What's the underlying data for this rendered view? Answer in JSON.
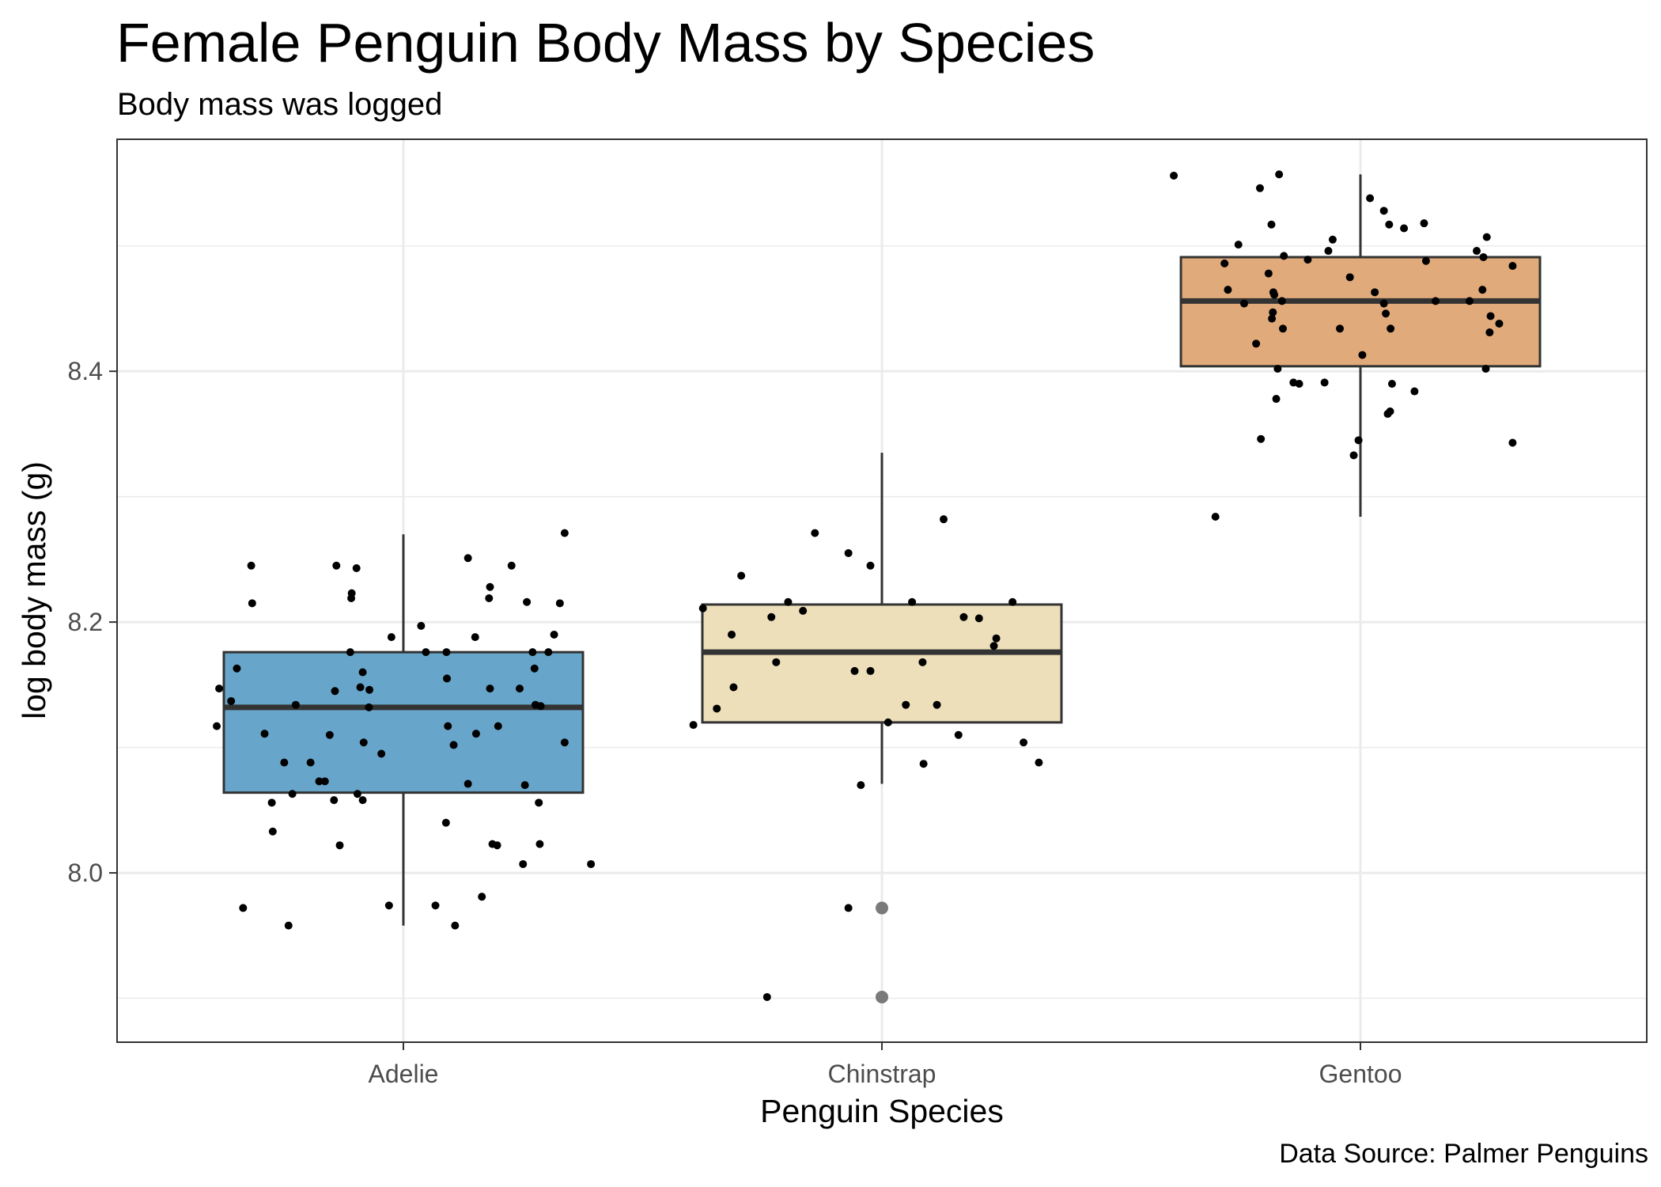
{
  "chart_data": {
    "type": "boxplot",
    "title": "Female Penguin Body Mass by Species",
    "subtitle": "Body mass was logged",
    "caption": "Data Source: Palmer Penguins",
    "xlabel": "Penguin Species",
    "ylabel": "log body mass (g)",
    "categories": [
      "Adelie",
      "Chinstrap",
      "Gentoo"
    ],
    "ylim": [
      7.865,
      8.585
    ],
    "y_ticks": [
      8.0,
      8.2,
      8.4
    ],
    "y_tick_labels": [
      "8.0",
      "8.2",
      "8.4"
    ],
    "grid": true,
    "colors": {
      "Adelie": "#67a6ca",
      "Chinstrap": "#ecdfb9",
      "Gentoo": "#e1aa7a",
      "box_outline": "#333333",
      "points": "#000000",
      "outliers": "#7a7a7a",
      "grid": "#ebebeb",
      "panel_border": "#333333"
    },
    "boxes": [
      {
        "category": "Adelie",
        "min": 7.958,
        "q1": 8.064,
        "median": 8.132,
        "q3": 8.176,
        "max": 8.27,
        "outliers": []
      },
      {
        "category": "Chinstrap",
        "min": 8.071,
        "q1": 8.12,
        "median": 8.176,
        "q3": 8.214,
        "max": 8.335,
        "outliers": [
          7.972,
          7.901
        ]
      },
      {
        "category": "Gentoo",
        "min": 8.284,
        "q1": 8.404,
        "median": 8.456,
        "q3": 8.491,
        "max": 8.557,
        "outliers": []
      }
    ],
    "points": [
      {
        "category": "Adelie",
        "x_jitter": -0.39,
        "y": 8.117
      },
      {
        "category": "Adelie",
        "x_jitter": -0.385,
        "y": 8.147
      },
      {
        "category": "Adelie",
        "x_jitter": -0.36,
        "y": 8.137
      },
      {
        "category": "Adelie",
        "x_jitter": -0.348,
        "y": 8.163
      },
      {
        "category": "Adelie",
        "x_jitter": -0.335,
        "y": 7.972
      },
      {
        "category": "Adelie",
        "x_jitter": -0.318,
        "y": 8.245
      },
      {
        "category": "Adelie",
        "x_jitter": -0.316,
        "y": 8.215
      },
      {
        "category": "Adelie",
        "x_jitter": -0.29,
        "y": 8.111
      },
      {
        "category": "Adelie",
        "x_jitter": -0.275,
        "y": 8.056
      },
      {
        "category": "Adelie",
        "x_jitter": -0.273,
        "y": 8.033
      },
      {
        "category": "Adelie",
        "x_jitter": -0.249,
        "y": 8.088
      },
      {
        "category": "Adelie",
        "x_jitter": -0.24,
        "y": 7.958
      },
      {
        "category": "Adelie",
        "x_jitter": -0.232,
        "y": 8.063
      },
      {
        "category": "Adelie",
        "x_jitter": -0.225,
        "y": 8.134
      },
      {
        "category": "Adelie",
        "x_jitter": -0.194,
        "y": 8.088
      },
      {
        "category": "Adelie",
        "x_jitter": -0.176,
        "y": 8.073
      },
      {
        "category": "Adelie",
        "x_jitter": -0.164,
        "y": 8.073
      },
      {
        "category": "Adelie",
        "x_jitter": -0.154,
        "y": 8.11
      },
      {
        "category": "Adelie",
        "x_jitter": -0.145,
        "y": 8.058
      },
      {
        "category": "Adelie",
        "x_jitter": -0.143,
        "y": 8.145
      },
      {
        "category": "Adelie",
        "x_jitter": -0.14,
        "y": 8.245
      },
      {
        "category": "Adelie",
        "x_jitter": -0.133,
        "y": 8.022
      },
      {
        "category": "Adelie",
        "x_jitter": -0.111,
        "y": 8.176
      },
      {
        "category": "Adelie",
        "x_jitter": -0.109,
        "y": 8.219
      },
      {
        "category": "Adelie",
        "x_jitter": -0.108,
        "y": 8.223
      },
      {
        "category": "Adelie",
        "x_jitter": -0.098,
        "y": 8.243
      },
      {
        "category": "Adelie",
        "x_jitter": -0.096,
        "y": 8.063
      },
      {
        "category": "Adelie",
        "x_jitter": -0.09,
        "y": 8.148
      },
      {
        "category": "Adelie",
        "x_jitter": -0.085,
        "y": 8.058
      },
      {
        "category": "Adelie",
        "x_jitter": -0.085,
        "y": 8.16
      },
      {
        "category": "Adelie",
        "x_jitter": -0.083,
        "y": 8.104
      },
      {
        "category": "Adelie",
        "x_jitter": -0.072,
        "y": 8.132
      },
      {
        "category": "Adelie",
        "x_jitter": -0.071,
        "y": 8.146
      },
      {
        "category": "Adelie",
        "x_jitter": -0.046,
        "y": 8.095
      },
      {
        "category": "Adelie",
        "x_jitter": -0.03,
        "y": 7.974
      },
      {
        "category": "Adelie",
        "x_jitter": -0.025,
        "y": 8.188
      },
      {
        "category": "Adelie",
        "x_jitter": 0.037,
        "y": 8.197
      },
      {
        "category": "Adelie",
        "x_jitter": 0.047,
        "y": 8.176
      },
      {
        "category": "Adelie",
        "x_jitter": 0.067,
        "y": 7.974
      },
      {
        "category": "Adelie",
        "x_jitter": 0.089,
        "y": 8.04
      },
      {
        "category": "Adelie",
        "x_jitter": 0.09,
        "y": 8.176
      },
      {
        "category": "Adelie",
        "x_jitter": 0.091,
        "y": 8.155
      },
      {
        "category": "Adelie",
        "x_jitter": 0.093,
        "y": 8.117
      },
      {
        "category": "Adelie",
        "x_jitter": 0.105,
        "y": 8.102
      },
      {
        "category": "Adelie",
        "x_jitter": 0.108,
        "y": 7.958
      },
      {
        "category": "Adelie",
        "x_jitter": 0.135,
        "y": 8.071
      },
      {
        "category": "Adelie",
        "x_jitter": 0.135,
        "y": 8.251
      },
      {
        "category": "Adelie",
        "x_jitter": 0.15,
        "y": 8.188
      },
      {
        "category": "Adelie",
        "x_jitter": 0.152,
        "y": 8.111
      },
      {
        "category": "Adelie",
        "x_jitter": 0.164,
        "y": 7.981
      },
      {
        "category": "Adelie",
        "x_jitter": 0.179,
        "y": 8.219
      },
      {
        "category": "Adelie",
        "x_jitter": 0.181,
        "y": 8.228
      },
      {
        "category": "Adelie",
        "x_jitter": 0.181,
        "y": 8.147
      },
      {
        "category": "Adelie",
        "x_jitter": 0.186,
        "y": 8.023
      },
      {
        "category": "Adelie",
        "x_jitter": 0.196,
        "y": 8.022
      },
      {
        "category": "Adelie",
        "x_jitter": 0.198,
        "y": 8.117
      },
      {
        "category": "Adelie",
        "x_jitter": 0.226,
        "y": 8.245
      },
      {
        "category": "Adelie",
        "x_jitter": 0.243,
        "y": 8.147
      },
      {
        "category": "Adelie",
        "x_jitter": 0.25,
        "y": 8.007
      },
      {
        "category": "Adelie",
        "x_jitter": 0.254,
        "y": 8.07
      },
      {
        "category": "Adelie",
        "x_jitter": 0.258,
        "y": 8.216
      },
      {
        "category": "Adelie",
        "x_jitter": 0.27,
        "y": 8.176
      },
      {
        "category": "Adelie",
        "x_jitter": 0.274,
        "y": 8.163
      },
      {
        "category": "Adelie",
        "x_jitter": 0.276,
        "y": 8.134
      },
      {
        "category": "Adelie",
        "x_jitter": 0.283,
        "y": 8.056
      },
      {
        "category": "Adelie",
        "x_jitter": 0.285,
        "y": 8.023
      },
      {
        "category": "Adelie",
        "x_jitter": 0.287,
        "y": 8.133
      },
      {
        "category": "Adelie",
        "x_jitter": 0.303,
        "y": 8.176
      },
      {
        "category": "Adelie",
        "x_jitter": 0.315,
        "y": 8.19
      },
      {
        "category": "Adelie",
        "x_jitter": 0.327,
        "y": 8.215
      },
      {
        "category": "Adelie",
        "x_jitter": 0.337,
        "y": 8.104
      },
      {
        "category": "Adelie",
        "x_jitter": 0.337,
        "y": 8.271
      },
      {
        "category": "Adelie",
        "x_jitter": 0.392,
        "y": 8.007
      },
      {
        "category": "Chinstrap",
        "x_jitter": -0.394,
        "y": 8.118
      },
      {
        "category": "Chinstrap",
        "x_jitter": -0.374,
        "y": 8.211
      },
      {
        "category": "Chinstrap",
        "x_jitter": -0.345,
        "y": 8.131
      },
      {
        "category": "Chinstrap",
        "x_jitter": -0.314,
        "y": 8.19
      },
      {
        "category": "Chinstrap",
        "x_jitter": -0.31,
        "y": 8.148
      },
      {
        "category": "Chinstrap",
        "x_jitter": -0.294,
        "y": 8.237
      },
      {
        "category": "Chinstrap",
        "x_jitter": -0.24,
        "y": 7.901
      },
      {
        "category": "Chinstrap",
        "x_jitter": -0.231,
        "y": 8.204
      },
      {
        "category": "Chinstrap",
        "x_jitter": -0.221,
        "y": 8.168
      },
      {
        "category": "Chinstrap",
        "x_jitter": -0.196,
        "y": 8.216
      },
      {
        "category": "Chinstrap",
        "x_jitter": -0.165,
        "y": 8.209
      },
      {
        "category": "Chinstrap",
        "x_jitter": -0.14,
        "y": 8.271
      },
      {
        "category": "Chinstrap",
        "x_jitter": -0.07,
        "y": 7.972
      },
      {
        "category": "Chinstrap",
        "x_jitter": -0.07,
        "y": 8.255
      },
      {
        "category": "Chinstrap",
        "x_jitter": -0.057,
        "y": 8.161
      },
      {
        "category": "Chinstrap",
        "x_jitter": -0.044,
        "y": 8.07
      },
      {
        "category": "Chinstrap",
        "x_jitter": -0.024,
        "y": 8.245
      },
      {
        "category": "Chinstrap",
        "x_jitter": -0.024,
        "y": 8.161
      },
      {
        "category": "Chinstrap",
        "x_jitter": 0.013,
        "y": 8.12
      },
      {
        "category": "Chinstrap",
        "x_jitter": 0.05,
        "y": 8.134
      },
      {
        "category": "Chinstrap",
        "x_jitter": 0.063,
        "y": 8.216
      },
      {
        "category": "Chinstrap",
        "x_jitter": 0.085,
        "y": 8.168
      },
      {
        "category": "Chinstrap",
        "x_jitter": 0.087,
        "y": 8.087
      },
      {
        "category": "Chinstrap",
        "x_jitter": 0.115,
        "y": 8.134
      },
      {
        "category": "Chinstrap",
        "x_jitter": 0.129,
        "y": 8.282
      },
      {
        "category": "Chinstrap",
        "x_jitter": 0.16,
        "y": 8.11
      },
      {
        "category": "Chinstrap",
        "x_jitter": 0.171,
        "y": 8.204
      },
      {
        "category": "Chinstrap",
        "x_jitter": 0.203,
        "y": 8.203
      },
      {
        "category": "Chinstrap",
        "x_jitter": 0.234,
        "y": 8.181
      },
      {
        "category": "Chinstrap",
        "x_jitter": 0.239,
        "y": 8.187
      },
      {
        "category": "Chinstrap",
        "x_jitter": 0.273,
        "y": 8.216
      },
      {
        "category": "Chinstrap",
        "x_jitter": 0.296,
        "y": 8.104
      },
      {
        "category": "Chinstrap",
        "x_jitter": 0.328,
        "y": 8.088
      },
      {
        "category": "Gentoo",
        "x_jitter": -0.39,
        "y": 8.556
      },
      {
        "category": "Gentoo",
        "x_jitter": -0.303,
        "y": 8.284
      },
      {
        "category": "Gentoo",
        "x_jitter": -0.284,
        "y": 8.486
      },
      {
        "category": "Gentoo",
        "x_jitter": -0.277,
        "y": 8.465
      },
      {
        "category": "Gentoo",
        "x_jitter": -0.255,
        "y": 8.501
      },
      {
        "category": "Gentoo",
        "x_jitter": -0.243,
        "y": 8.454
      },
      {
        "category": "Gentoo",
        "x_jitter": -0.218,
        "y": 8.422
      },
      {
        "category": "Gentoo",
        "x_jitter": -0.21,
        "y": 8.546
      },
      {
        "category": "Gentoo",
        "x_jitter": -0.208,
        "y": 8.346
      },
      {
        "category": "Gentoo",
        "x_jitter": -0.192,
        "y": 8.478
      },
      {
        "category": "Gentoo",
        "x_jitter": -0.186,
        "y": 8.517
      },
      {
        "category": "Gentoo",
        "x_jitter": -0.185,
        "y": 8.442
      },
      {
        "category": "Gentoo",
        "x_jitter": -0.183,
        "y": 8.447
      },
      {
        "category": "Gentoo",
        "x_jitter": -0.182,
        "y": 8.463
      },
      {
        "category": "Gentoo",
        "x_jitter": -0.18,
        "y": 8.461
      },
      {
        "category": "Gentoo",
        "x_jitter": -0.176,
        "y": 8.378
      },
      {
        "category": "Gentoo",
        "x_jitter": -0.173,
        "y": 8.402
      },
      {
        "category": "Gentoo",
        "x_jitter": -0.17,
        "y": 8.557
      },
      {
        "category": "Gentoo",
        "x_jitter": -0.164,
        "y": 8.456
      },
      {
        "category": "Gentoo",
        "x_jitter": -0.162,
        "y": 8.434
      },
      {
        "category": "Gentoo",
        "x_jitter": -0.16,
        "y": 8.492
      },
      {
        "category": "Gentoo",
        "x_jitter": -0.14,
        "y": 8.391
      },
      {
        "category": "Gentoo",
        "x_jitter": -0.128,
        "y": 8.39
      },
      {
        "category": "Gentoo",
        "x_jitter": -0.11,
        "y": 8.489
      },
      {
        "category": "Gentoo",
        "x_jitter": -0.075,
        "y": 8.391
      },
      {
        "category": "Gentoo",
        "x_jitter": -0.067,
        "y": 8.496
      },
      {
        "category": "Gentoo",
        "x_jitter": -0.058,
        "y": 8.505
      },
      {
        "category": "Gentoo",
        "x_jitter": -0.043,
        "y": 8.434
      },
      {
        "category": "Gentoo",
        "x_jitter": -0.022,
        "y": 8.475
      },
      {
        "category": "Gentoo",
        "x_jitter": -0.014,
        "y": 8.333
      },
      {
        "category": "Gentoo",
        "x_jitter": -0.004,
        "y": 8.345
      },
      {
        "category": "Gentoo",
        "x_jitter": 0.004,
        "y": 8.413
      },
      {
        "category": "Gentoo",
        "x_jitter": 0.02,
        "y": 8.538
      },
      {
        "category": "Gentoo",
        "x_jitter": 0.03,
        "y": 8.463
      },
      {
        "category": "Gentoo",
        "x_jitter": 0.049,
        "y": 8.528
      },
      {
        "category": "Gentoo",
        "x_jitter": 0.049,
        "y": 8.454
      },
      {
        "category": "Gentoo",
        "x_jitter": 0.053,
        "y": 8.446
      },
      {
        "category": "Gentoo",
        "x_jitter": 0.057,
        "y": 8.366
      },
      {
        "category": "Gentoo",
        "x_jitter": 0.06,
        "y": 8.517
      },
      {
        "category": "Gentoo",
        "x_jitter": 0.062,
        "y": 8.368
      },
      {
        "category": "Gentoo",
        "x_jitter": 0.063,
        "y": 8.434
      },
      {
        "category": "Gentoo",
        "x_jitter": 0.066,
        "y": 8.39
      },
      {
        "category": "Gentoo",
        "x_jitter": 0.091,
        "y": 8.514
      },
      {
        "category": "Gentoo",
        "x_jitter": 0.113,
        "y": 8.384
      },
      {
        "category": "Gentoo",
        "x_jitter": 0.137,
        "y": 8.488
      },
      {
        "category": "Gentoo",
        "x_jitter": 0.133,
        "y": 8.518
      },
      {
        "category": "Gentoo",
        "x_jitter": 0.157,
        "y": 8.456
      },
      {
        "category": "Gentoo",
        "x_jitter": 0.228,
        "y": 8.456
      },
      {
        "category": "Gentoo",
        "x_jitter": 0.243,
        "y": 8.496
      },
      {
        "category": "Gentoo",
        "x_jitter": 0.255,
        "y": 8.465
      },
      {
        "category": "Gentoo",
        "x_jitter": 0.257,
        "y": 8.491
      },
      {
        "category": "Gentoo",
        "x_jitter": 0.262,
        "y": 8.402
      },
      {
        "category": "Gentoo",
        "x_jitter": 0.264,
        "y": 8.507
      },
      {
        "category": "Gentoo",
        "x_jitter": 0.27,
        "y": 8.431
      },
      {
        "category": "Gentoo",
        "x_jitter": 0.272,
        "y": 8.444
      },
      {
        "category": "Gentoo",
        "x_jitter": 0.29,
        "y": 8.438
      },
      {
        "category": "Gentoo",
        "x_jitter": 0.318,
        "y": 8.484
      },
      {
        "category": "Gentoo",
        "x_jitter": 0.318,
        "y": 8.343
      }
    ],
    "x_axis_label": "Penguin Species",
    "y_axis_label": "log body mass (g)"
  }
}
